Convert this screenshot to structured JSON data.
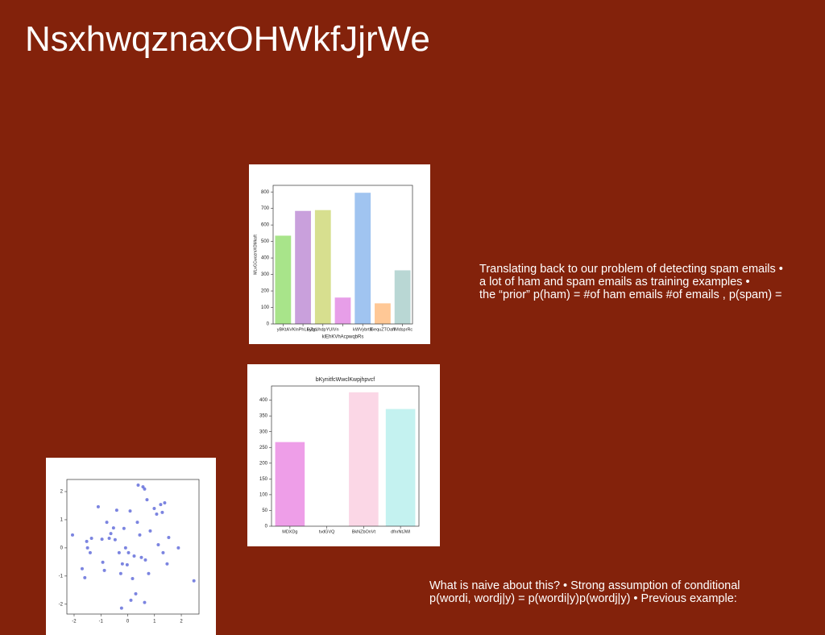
{
  "title": "NsxhwqznaxOHWkfJjrWe",
  "text_blocks": [
    [
      "Translating back to our problem of detecting spam emails •",
      "a lot of ham and spam emails as training examples •",
      "the “prior” p(ham) = #of ham emails #of emails , p(spam) ="
    ],
    [
      "What is naive about this? • Strong assumption of conditional",
      "p(wordi, wordj|y) = p(wordi|y)p(wordj|y) • Previous example:"
    ]
  ],
  "chart_data": [
    {
      "type": "bar",
      "xlabel": "klEhKVhAcpwqbRs",
      "ylabel": "MLvGCwozmXOMkaft",
      "categories": [
        "yBKtA",
        "VKlnPhLEybo",
        "ixZgUhdpYUIVn",
        null,
        "kWVybrtB",
        "GequZTOaff",
        "nMdsprRc"
      ],
      "values": [
        535,
        685,
        690,
        160,
        795,
        125,
        325
      ],
      "colors": [
        "#a8e48a",
        "#c9a0dc",
        "#d7df8f",
        "#e79ee8",
        "#a0c4f0",
        "#ffc896",
        "#b9d7d4"
      ],
      "ylim": [
        0,
        840
      ],
      "yticks": [
        0,
        100,
        200,
        300,
        400,
        500,
        600,
        700,
        800
      ]
    },
    {
      "type": "bar",
      "title": "bKynitfcWwclKwpjhpvcf",
      "categories": [
        "MDXDg",
        "tvdGVQ",
        "BkNZbOnVt",
        "dfnrNtJWl"
      ],
      "values": [
        267,
        0,
        425,
        372
      ],
      "colors": [
        "#ee9ee8",
        "#f5c6d8",
        "#fbd7e6",
        "#c4f2f0"
      ],
      "ylim": [
        0,
        445
      ],
      "yticks": [
        0,
        50,
        100,
        150,
        200,
        250,
        300,
        350,
        400
      ]
    },
    {
      "type": "scatter",
      "color": "#4f5bd5",
      "x": [
        -2.06,
        -1.7,
        -1.6,
        -1.53,
        -1.5,
        -1.4,
        -1.35,
        -1.1,
        -0.96,
        -0.93,
        -0.87,
        -0.78,
        -0.69,
        -0.63,
        -0.53,
        -0.47,
        -0.41,
        -0.32,
        -0.26,
        -0.2,
        -0.14,
        -0.08,
        -0.02,
        0.03,
        0.09,
        0.12,
        0.18,
        0.24,
        0.3,
        0.36,
        0.39,
        0.45,
        0.51,
        0.57,
        0.63,
        0.66,
        0.72,
        0.78,
        0.84,
        0.99,
        1.08,
        1.14,
        1.23,
        1.29,
        1.32,
        1.38,
        1.47,
        1.53,
        1.89,
        2.47,
        -0.23,
        0.63
      ],
      "values": [
        0.46,
        -0.74,
        -1.06,
        0.23,
        0,
        -0.17,
        0.34,
        1.46,
        0.31,
        -0.51,
        -0.8,
        0.91,
        0.34,
        0.51,
        0.71,
        0.29,
        1.34,
        -0.17,
        -0.91,
        -0.57,
        0.69,
        0,
        -0.6,
        -0.17,
        1.31,
        -1.86,
        -1.09,
        -0.29,
        -1.63,
        0.91,
        2.23,
        0.46,
        -0.34,
        2.17,
        2.09,
        -0.43,
        1.71,
        -0.91,
        0.6,
        1.4,
        1.2,
        0.11,
        1.54,
        1.26,
        -0.17,
        1.6,
        -0.57,
        0.37,
        0,
        -1.17,
        -2.14,
        -1.94
      ],
      "xlim": [
        -2.27,
        2.66
      ],
      "ylim": [
        -2.35,
        2.43
      ],
      "xticks": [
        -2,
        -1,
        0,
        1,
        2
      ],
      "yticks": [
        -2,
        -1,
        0,
        1,
        2
      ]
    }
  ]
}
